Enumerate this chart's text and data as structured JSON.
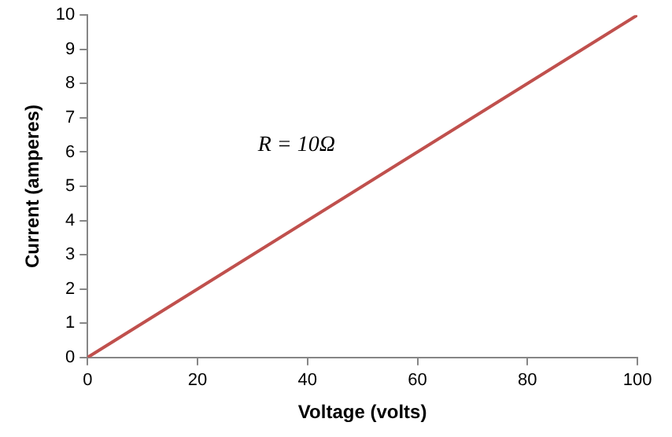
{
  "chart_data": {
    "type": "line",
    "xlabel": "Voltage (volts)",
    "ylabel": "Current (amperes)",
    "x": [
      0,
      100
    ],
    "series": [
      {
        "color": "#c0504d",
        "values": [
          0,
          10
        ]
      }
    ],
    "xlim": [
      0,
      100
    ],
    "xticks": [
      0,
      20,
      40,
      60,
      80,
      100
    ],
    "ylim": [
      0,
      10
    ],
    "yticks": [
      0,
      1,
      2,
      3,
      4,
      5,
      6,
      7,
      8,
      9,
      10
    ],
    "grid": false,
    "legend": false,
    "marker": "none",
    "line_style": "solid",
    "annotations": [
      "R = 10Ω"
    ]
  }
}
